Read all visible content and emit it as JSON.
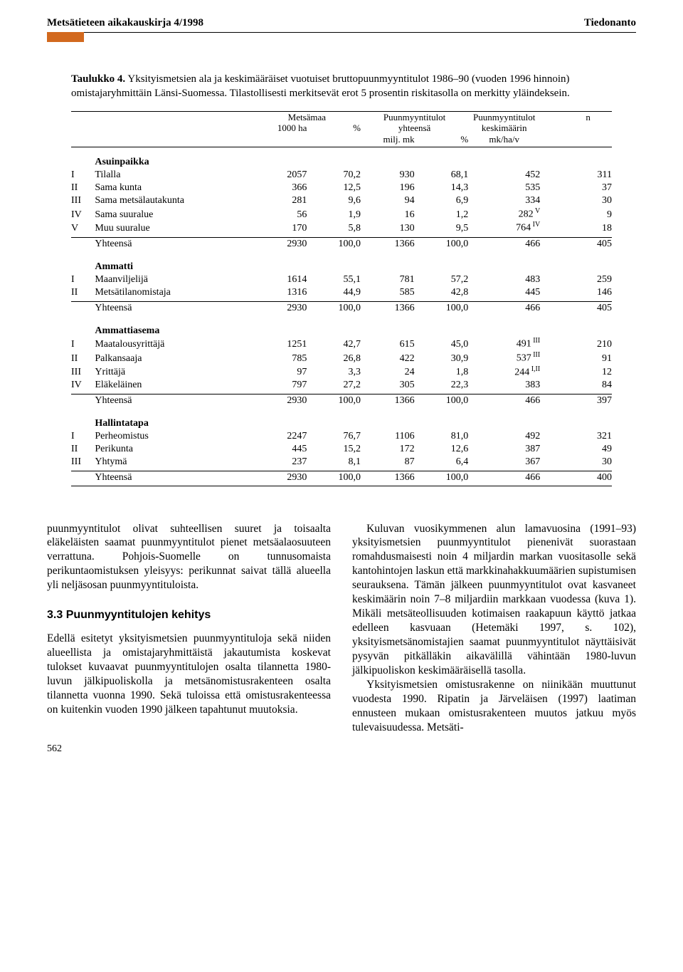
{
  "header": {
    "left": "Metsätieteen aikakauskirja 4/1998",
    "right": "Tiedonanto"
  },
  "caption": {
    "label": "Taulukko 4.",
    "text": "Yksityismetsien ala ja keskimääräiset vuotuiset bruttopuunmyyntitulot 1986–90 (vuoden 1996 hinnoin) omistajaryhmittäin Länsi-Suomessa. Tilastollisesti merkitsevät erot 5 prosentin riskitasolla on merkitty yläindeksein."
  },
  "columns": {
    "c1_top": "Metsämaa",
    "c1_sub_left": "1000 ha",
    "c1_sub_right": "%",
    "c2_top": "Puunmyyntitulot",
    "c2_mid": "yhteensä",
    "c2_sub_left": "milj. mk",
    "c2_sub_right": "%",
    "c3_top": "Puunmyyntitulot",
    "c3_mid": "keskimäärin",
    "c3_sub": "mk/ha/v",
    "c4_top": "n"
  },
  "groups": [
    {
      "title": "Asuinpaikka",
      "rows": [
        {
          "r": "I",
          "label": "Tilalla",
          "a": "2057",
          "ap": "70,2",
          "b": "930",
          "bp": "68,1",
          "avg": "452",
          "n": "311"
        },
        {
          "r": "II",
          "label": "Sama kunta",
          "a": "366",
          "ap": "12,5",
          "b": "196",
          "bp": "14,3",
          "avg": "535",
          "n": "37"
        },
        {
          "r": "III",
          "label": "Sama metsälautakunta",
          "a": "281",
          "ap": "9,6",
          "b": "94",
          "bp": "6,9",
          "avg": "334",
          "n": "30"
        },
        {
          "r": "IV",
          "label": "Sama suuralue",
          "a": "56",
          "ap": "1,9",
          "b": "16",
          "bp": "1,2",
          "avg": "282",
          "avg_sup": "V",
          "n": "9"
        },
        {
          "r": "V",
          "label": "Muu suuralue",
          "a": "170",
          "ap": "5,8",
          "b": "130",
          "bp": "9,5",
          "avg": "764",
          "avg_sup": "IV",
          "n": "18"
        }
      ],
      "total": {
        "label": "Yhteensä",
        "a": "2930",
        "ap": "100,0",
        "b": "1366",
        "bp": "100,0",
        "avg": "466",
        "n": "405"
      }
    },
    {
      "title": "Ammatti",
      "rows": [
        {
          "r": "I",
          "label": "Maanviljelijä",
          "a": "1614",
          "ap": "55,1",
          "b": "781",
          "bp": "57,2",
          "avg": "483",
          "n": "259"
        },
        {
          "r": "II",
          "label": "Metsätilanomistaja",
          "a": "1316",
          "ap": "44,9",
          "b": "585",
          "bp": "42,8",
          "avg": "445",
          "n": "146"
        }
      ],
      "total": {
        "label": "Yhteensä",
        "a": "2930",
        "ap": "100,0",
        "b": "1366",
        "bp": "100,0",
        "avg": "466",
        "n": "405"
      }
    },
    {
      "title": "Ammattiasema",
      "rows": [
        {
          "r": "I",
          "label": "Maatalousyrittäjä",
          "a": "1251",
          "ap": "42,7",
          "b": "615",
          "bp": "45,0",
          "avg": "491",
          "avg_sup": "III",
          "n": "210"
        },
        {
          "r": "II",
          "label": "Palkansaaja",
          "a": "785",
          "ap": "26,8",
          "b": "422",
          "bp": "30,9",
          "avg": "537",
          "avg_sup": "III",
          "n": "91"
        },
        {
          "r": "III",
          "label": "Yrittäjä",
          "a": "97",
          "ap": "3,3",
          "b": "24",
          "bp": "1,8",
          "avg": "244",
          "avg_sup": "I,II",
          "n": "12"
        },
        {
          "r": "IV",
          "label": "Eläkeläinen",
          "a": "797",
          "ap": "27,2",
          "b": "305",
          "bp": "22,3",
          "avg": "383",
          "n": "84"
        }
      ],
      "total": {
        "label": "Yhteensä",
        "a": "2930",
        "ap": "100,0",
        "b": "1366",
        "bp": "100,0",
        "avg": "466",
        "n": "397"
      }
    },
    {
      "title": "Hallintatapa",
      "rows": [
        {
          "r": "I",
          "label": "Perheomistus",
          "a": "2247",
          "ap": "76,7",
          "b": "1106",
          "bp": "81,0",
          "avg": "492",
          "n": "321"
        },
        {
          "r": "II",
          "label": "Perikunta",
          "a": "445",
          "ap": "15,2",
          "b": "172",
          "bp": "12,6",
          "avg": "387",
          "n": "49"
        },
        {
          "r": "III",
          "label": "Yhtymä",
          "a": "237",
          "ap": "8,1",
          "b": "87",
          "bp": "6,4",
          "avg": "367",
          "n": "30"
        }
      ],
      "total": {
        "label": "Yhteensä",
        "a": "2930",
        "ap": "100,0",
        "b": "1366",
        "bp": "100,0",
        "avg": "466",
        "n": "400"
      }
    }
  ],
  "body": {
    "left_p1": "puunmyyntitulot olivat suhteellisen suuret ja toisaalta eläkeläisten saamat puunmyyntitulot pienet metsäalaosuuteen verrattuna. Pohjois-Suomelle on tunnusomaista perikuntaomistuksen yleisyys: perikunnat saivat tällä alueella yli neljäsosan puunmyyntituloista.",
    "left_h3": "3.3 Puunmyyntitulojen kehitys",
    "left_p2": "Edellä esitetyt yksityismetsien puunmyyntituloja sekä niiden alueellista ja omistajaryhmittäistä jakautumista koskevat tulokset kuvaavat puunmyyntitulojen osalta tilannetta 1980-luvun jälkipuoliskolla ja metsänomistusrakenteen osalta tilannetta vuonna 1990. Sekä tuloissa että omistusrakenteessa on kuitenkin vuoden 1990 jälkeen tapahtunut muutoksia.",
    "right_p1": "Kuluvan vuosikymmenen alun lamavuosina (1991–93) yksityismetsien puunmyyntitulot pienenivät suorastaan romahdusmaisesti noin 4 miljardin markan vuositasolle sekä kantohintojen laskun että markkinahakkuumäärien supistumisen seurauksena. Tämän jälkeen puunmyyntitulot ovat kasvaneet keskimäärin noin 7–8 miljardiin markkaan vuodessa (kuva 1). Mikäli metsäteollisuuden kotimaisen raakapuun käyttö jatkaa edelleen kasvuaan (Hetemäki 1997, s. 102), yksityismetsänomistajien saamat puunmyyntitulot näyttäisivät pysyvän pitkälläkin aikavälillä vähintään 1980-luvun jälkipuoliskon keskimääräisellä tasolla.",
    "right_p2": "Yksityismetsien omistusrakenne on niinikään muuttunut vuodesta 1990. Ripatin ja Järveläisen (1997) laatiman ennusteen mukaan omistusrakenteen muutos jatkuu myös tulevaisuudessa. Metsäti-"
  },
  "page_number": "562"
}
